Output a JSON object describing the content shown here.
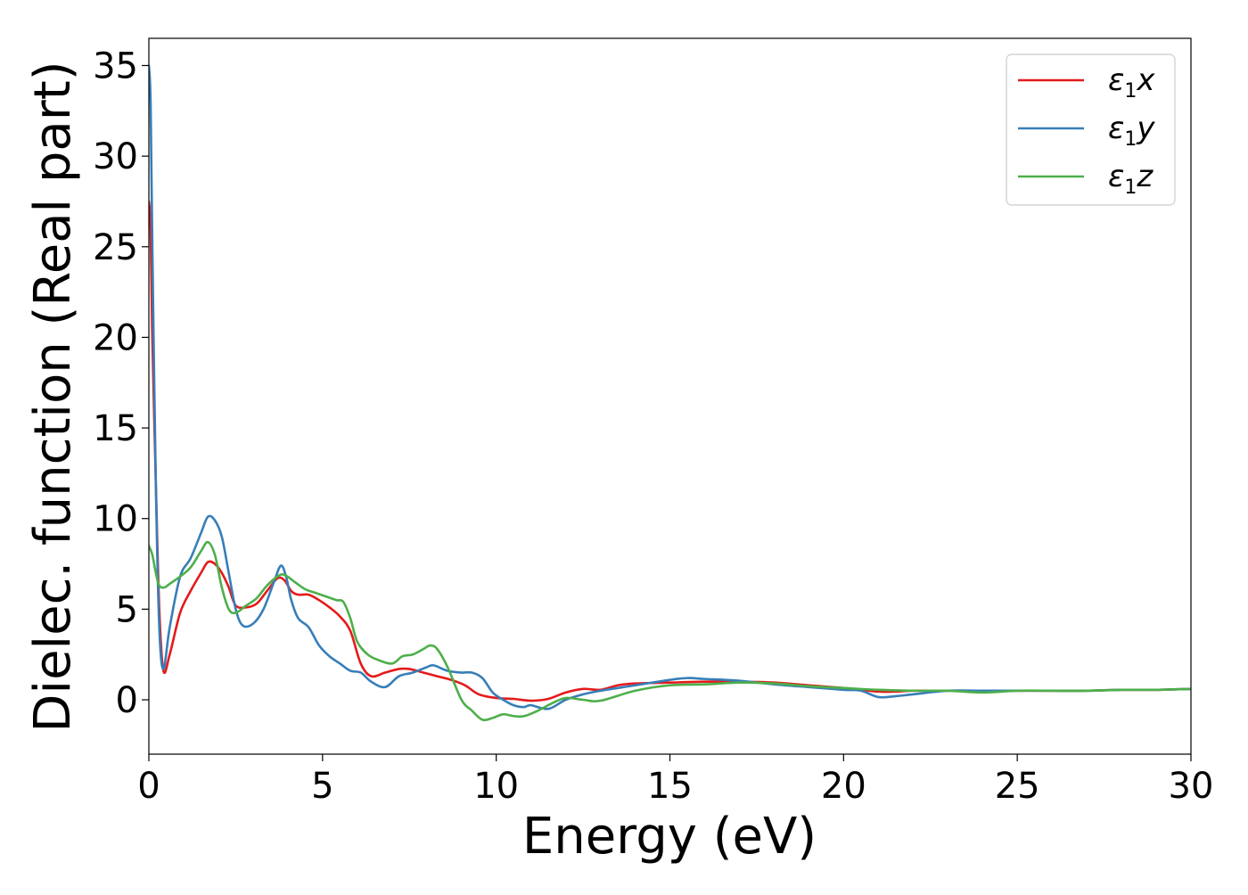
{
  "chart_data": {
    "type": "line",
    "xlabel": "Energy (eV)",
    "ylabel": "Dielec. function (Real part)",
    "xlim": [
      0,
      30
    ],
    "ylim": [
      -3,
      36.5
    ],
    "xticks": [
      0,
      5,
      10,
      15,
      20,
      25,
      30
    ],
    "yticks": [
      0,
      5,
      10,
      15,
      20,
      25,
      30,
      35
    ],
    "grid": false,
    "legend_position": "top-right",
    "series": [
      {
        "name": "ε1x",
        "legend_base": "ε",
        "legend_sub": "1",
        "legend_suffix": "x",
        "color": "#e41a1c",
        "x": [
          0,
          0.05,
          0.1,
          0.2,
          0.3,
          0.42,
          0.6,
          0.9,
          1.2,
          1.5,
          1.7,
          1.9,
          2.1,
          2.3,
          2.5,
          2.8,
          3.1,
          3.4,
          3.7,
          3.9,
          4.1,
          4.3,
          4.6,
          4.9,
          5.2,
          5.5,
          5.8,
          6.1,
          6.4,
          6.8,
          7.2,
          7.5,
          7.9,
          8.3,
          8.7,
          9.1,
          9.5,
          10.0,
          10.5,
          11.0,
          11.5,
          12.0,
          12.5,
          13.0,
          13.5,
          14.0,
          15.0,
          16.0,
          17.0,
          18.0,
          19.0,
          20.0,
          20.5,
          21.0,
          21.5,
          22.0,
          23.0,
          24.0,
          25.0,
          26.0,
          27.0,
          28.0,
          29.0,
          30.0
        ],
        "y": [
          27.5,
          26.0,
          20.0,
          12.0,
          5.0,
          1.6,
          2.5,
          4.8,
          6.0,
          7.0,
          7.6,
          7.5,
          7.0,
          6.2,
          5.2,
          5.1,
          5.3,
          6.0,
          6.7,
          6.6,
          6.0,
          5.8,
          5.8,
          5.5,
          5.1,
          4.6,
          3.8,
          2.0,
          1.3,
          1.5,
          1.7,
          1.7,
          1.5,
          1.3,
          1.1,
          0.8,
          0.3,
          0.1,
          0.05,
          -0.05,
          0.05,
          0.4,
          0.6,
          0.55,
          0.8,
          0.9,
          0.95,
          1.0,
          1.0,
          0.95,
          0.8,
          0.65,
          0.55,
          0.45,
          0.45,
          0.5,
          0.5,
          0.5,
          0.5,
          0.5,
          0.5,
          0.55,
          0.55,
          0.6
        ]
      },
      {
        "name": "ε1y",
        "legend_base": "ε",
        "legend_sub": "1",
        "legend_suffix": "y",
        "color": "#377eb8",
        "x": [
          0,
          0.05,
          0.1,
          0.2,
          0.3,
          0.42,
          0.6,
          0.9,
          1.2,
          1.5,
          1.7,
          1.9,
          2.1,
          2.3,
          2.5,
          2.7,
          3.0,
          3.3,
          3.6,
          3.8,
          3.95,
          4.1,
          4.3,
          4.6,
          4.9,
          5.2,
          5.5,
          5.8,
          6.1,
          6.4,
          6.8,
          7.2,
          7.6,
          8.0,
          8.2,
          8.6,
          9.0,
          9.3,
          9.6,
          9.9,
          10.2,
          10.5,
          10.8,
          11.0,
          11.5,
          12.0,
          12.5,
          13.0,
          14.0,
          15.0,
          15.5,
          16.0,
          17.0,
          18.0,
          19.0,
          20.0,
          20.5,
          21.0,
          21.5,
          22.0,
          23.0,
          24.0,
          25.0,
          26.0,
          27.0,
          28.0,
          29.0,
          30.0
        ],
        "y": [
          35.0,
          33.0,
          25.0,
          12.0,
          4.0,
          1.7,
          4.0,
          6.8,
          7.8,
          9.2,
          10.1,
          9.9,
          9.0,
          7.0,
          5.0,
          4.1,
          4.2,
          5.0,
          6.5,
          7.4,
          6.8,
          5.5,
          4.5,
          4.0,
          3.0,
          2.4,
          2.0,
          1.6,
          1.5,
          1.0,
          0.7,
          1.3,
          1.5,
          1.8,
          1.9,
          1.6,
          1.5,
          1.5,
          1.2,
          0.4,
          0.0,
          -0.3,
          -0.4,
          -0.3,
          -0.5,
          0.0,
          0.3,
          0.5,
          0.8,
          1.1,
          1.2,
          1.15,
          1.05,
          0.85,
          0.7,
          0.55,
          0.5,
          0.15,
          0.2,
          0.3,
          0.5,
          0.5,
          0.5,
          0.5,
          0.5,
          0.55,
          0.55,
          0.6
        ]
      },
      {
        "name": "ε1z",
        "legend_base": "ε",
        "legend_sub": "1",
        "legend_suffix": "z",
        "color": "#4daf4a",
        "x": [
          0,
          0.1,
          0.2,
          0.3,
          0.45,
          0.6,
          0.9,
          1.2,
          1.5,
          1.7,
          1.9,
          2.1,
          2.3,
          2.5,
          2.8,
          3.1,
          3.4,
          3.7,
          3.9,
          4.2,
          4.5,
          4.8,
          5.1,
          5.4,
          5.6,
          5.8,
          6.0,
          6.3,
          6.6,
          7.0,
          7.3,
          7.6,
          7.9,
          8.1,
          8.3,
          8.6,
          9.0,
          9.3,
          9.6,
          9.9,
          10.2,
          10.5,
          10.8,
          11.2,
          11.6,
          12.0,
          12.5,
          13.0,
          14.0,
          15.0,
          16.0,
          17.0,
          18.0,
          19.0,
          20.0,
          21.0,
          22.0,
          23.0,
          24.0,
          25.0,
          26.0,
          27.0,
          28.0,
          29.0,
          30.0
        ],
        "y": [
          8.5,
          8.0,
          7.0,
          6.3,
          6.2,
          6.4,
          6.8,
          7.3,
          8.2,
          8.7,
          8.0,
          6.2,
          5.0,
          4.8,
          5.2,
          5.6,
          6.3,
          6.8,
          6.9,
          6.5,
          6.1,
          5.9,
          5.7,
          5.5,
          5.4,
          4.5,
          3.2,
          2.5,
          2.2,
          2.0,
          2.4,
          2.5,
          2.8,
          3.0,
          2.8,
          1.8,
          0.0,
          -0.6,
          -1.1,
          -1.0,
          -0.8,
          -0.9,
          -0.9,
          -0.6,
          -0.2,
          0.1,
          0.0,
          -0.05,
          0.5,
          0.8,
          0.85,
          0.95,
          0.9,
          0.75,
          0.65,
          0.55,
          0.5,
          0.5,
          0.4,
          0.5,
          0.5,
          0.5,
          0.55,
          0.55,
          0.6
        ]
      }
    ]
  }
}
